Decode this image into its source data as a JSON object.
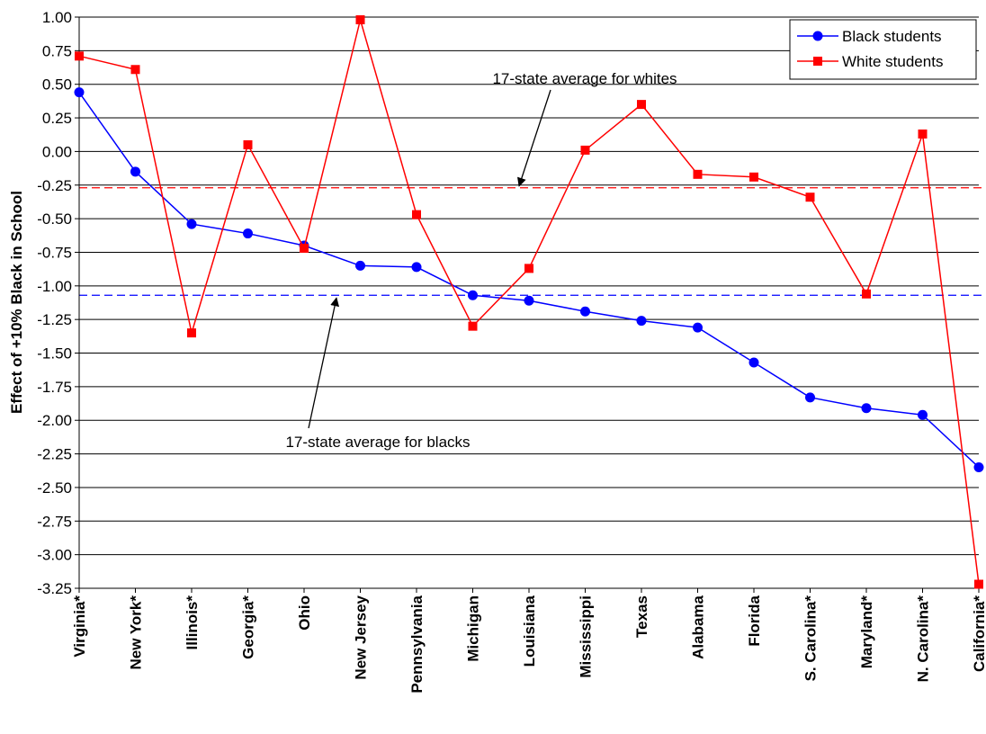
{
  "chart_data": {
    "type": "line",
    "title": "",
    "xlabel": "",
    "ylabel": "Effect of +10% Black in School",
    "ylim": [
      -3.25,
      1.0
    ],
    "ytick_step": 0.25,
    "ytick_labels": [
      "1.00",
      "0.75",
      "0.50",
      "0.25",
      "0.00",
      "-0.25",
      "-0.50",
      "-0.75",
      "-1.00",
      "-1.25",
      "-1.50",
      "-1.75",
      "-2.00",
      "-2.25",
      "-2.50",
      "-2.75",
      "-3.00",
      "-3.25"
    ],
    "grid": true,
    "legend_position": "top-right",
    "categories": [
      "Virginia*",
      "New York*",
      "Illinois*",
      "Georgia*",
      "Ohio",
      "New Jersey",
      "Pennsylvania",
      "Michigan",
      "Louisiana",
      "Mississippi",
      "Texas",
      "Alabama",
      "Florida",
      "S. Carolina*",
      "Maryland*",
      "N. Carolina*",
      "California*"
    ],
    "series": [
      {
        "name": "Black students",
        "color": "#0000FF",
        "marker": "circle",
        "values": [
          0.44,
          -0.15,
          -0.54,
          -0.61,
          -0.7,
          -0.85,
          -0.86,
          -1.07,
          -1.11,
          -1.19,
          -1.26,
          -1.31,
          -1.57,
          -1.83,
          -1.91,
          -1.96,
          -2.35
        ]
      },
      {
        "name": "White students",
        "color": "#FF0000",
        "marker": "square",
        "values": [
          0.71,
          0.61,
          -1.35,
          0.05,
          -0.72,
          0.98,
          -0.47,
          -1.3,
          -0.87,
          0.01,
          0.35,
          -0.17,
          -0.19,
          -0.34,
          -1.06,
          0.13,
          -3.22
        ]
      }
    ],
    "reference_lines": [
      {
        "label": "17-state average for whites",
        "value": -0.27,
        "color": "#FF0000",
        "dash": true
      },
      {
        "label": "17-state average for blacks",
        "value": -1.07,
        "color": "#0000FF",
        "dash": true
      }
    ],
    "annotations": [
      {
        "text": "17-state average for whites",
        "points_to": "17-state average for whites"
      },
      {
        "text": "17-state average for blacks",
        "points_to": "17-state average for blacks"
      }
    ]
  }
}
